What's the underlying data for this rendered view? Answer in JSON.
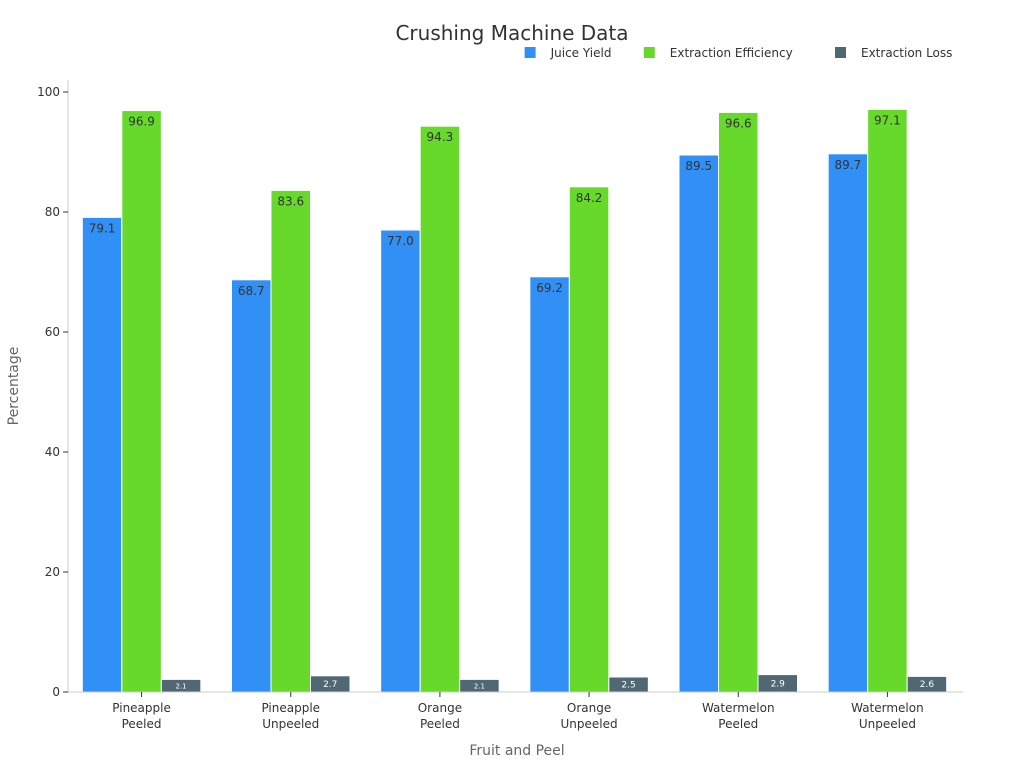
{
  "chart_data": {
    "type": "bar",
    "title": "Crushing Machine Data",
    "xlabel": "Fruit and Peel",
    "ylabel": "Percentage",
    "ylim": [
      0,
      102
    ],
    "yticks": [
      0,
      20,
      40,
      60,
      80,
      100
    ],
    "categories": [
      [
        "Pineapple",
        "Peeled"
      ],
      [
        "Pineapple",
        "Unpeeled"
      ],
      [
        "Orange",
        "Peeled"
      ],
      [
        "Orange",
        "Unpeeled"
      ],
      [
        "Watermelon",
        "Peeled"
      ],
      [
        "Watermelon",
        "Unpeeled"
      ]
    ],
    "series": [
      {
        "name": "Juice Yield",
        "color": "#3190f5",
        "values": [
          79.1,
          68.7,
          77.0,
          69.2,
          89.5,
          89.7
        ],
        "labels": [
          "79.1",
          "68.7",
          "77.0",
          "69.2",
          "89.5",
          "89.7"
        ]
      },
      {
        "name": "Extraction Efficiency",
        "color": "#66d92a",
        "values": [
          96.9,
          83.6,
          94.3,
          84.2,
          96.6,
          97.1
        ],
        "labels": [
          "96.9",
          "83.6",
          "94.3",
          "84.2",
          "96.6",
          "97.1"
        ]
      },
      {
        "name": "Extraction Loss",
        "color": "#506873",
        "values": [
          2.1,
          2.7,
          2.1,
          2.5,
          2.9,
          2.6
        ],
        "labels": [
          "2.1",
          "2.7",
          "2.1",
          "2.5",
          "2.9",
          "2.6"
        ]
      }
    ],
    "legend_position": "top-right",
    "grid": false
  }
}
